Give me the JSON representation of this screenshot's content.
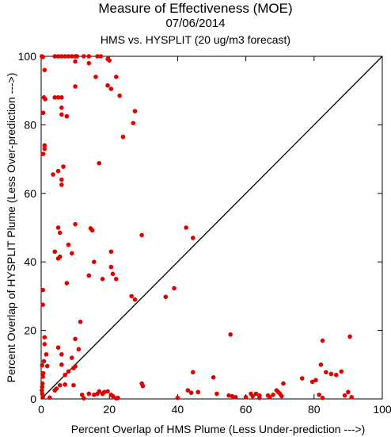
{
  "title": "Measure of Effectiveness (MOE)",
  "subtitle_date": "07/06/2014",
  "subtitle_comparison": "HMS vs. HYSPLIT  (20 ug/m3 forecast)",
  "colors": {
    "points": "#e00000",
    "axes": "#000000",
    "reference_line": "#000000"
  },
  "chart_data": {
    "type": "scatter",
    "title": "Measure of Effectiveness (MOE)",
    "xlabel": "Percent Overlap of HMS Plume (Less Under-prediction --->)",
    "ylabel": "Percent Overlap of HYSPLIT Plume (Less Over-prediction --->)",
    "xlim": [
      0,
      100
    ],
    "ylim": [
      0,
      100
    ],
    "x_ticks": [
      "0",
      "20",
      "40",
      "60",
      "80",
      "100"
    ],
    "y_ticks": [
      "0",
      "20",
      "40",
      "60",
      "80",
      "100"
    ],
    "grid": false,
    "legend": "none",
    "reference_line": {
      "from": [
        0,
        0
      ],
      "to": [
        100,
        100
      ]
    },
    "points": [
      [
        0.2,
        100
      ],
      [
        0.5,
        99.8
      ],
      [
        1.0,
        96
      ],
      [
        0.8,
        88
      ],
      [
        1.2,
        87.5
      ],
      [
        0.6,
        83.5
      ],
      [
        1.0,
        74
      ],
      [
        1.0,
        73
      ],
      [
        0.6,
        71.5
      ],
      [
        4,
        100
      ],
      [
        5,
        100
      ],
      [
        6,
        100
      ],
      [
        7,
        100
      ],
      [
        8,
        100
      ],
      [
        9,
        100
      ],
      [
        10,
        100
      ],
      [
        10.5,
        100
      ],
      [
        12.5,
        100
      ],
      [
        14,
        100
      ],
      [
        16.5,
        100
      ],
      [
        17.5,
        100
      ],
      [
        10,
        98.5
      ],
      [
        14,
        98
      ],
      [
        19.5,
        99.2
      ],
      [
        20,
        98.8
      ],
      [
        16,
        94
      ],
      [
        22,
        94
      ],
      [
        19.5,
        91.5
      ],
      [
        10,
        91.2
      ],
      [
        20.5,
        90.5
      ],
      [
        23,
        88.5
      ],
      [
        4,
        88
      ],
      [
        5,
        88
      ],
      [
        6,
        88
      ],
      [
        6,
        85
      ],
      [
        6,
        83
      ],
      [
        7.5,
        82.5
      ],
      [
        27.5,
        84
      ],
      [
        27,
        80.5
      ],
      [
        24,
        76.5
      ],
      [
        17,
        68.8
      ],
      [
        6.5,
        67.8
      ],
      [
        5,
        66.5
      ],
      [
        3.5,
        65.5
      ],
      [
        6,
        64
      ],
      [
        6,
        62.5
      ],
      [
        10,
        51
      ],
      [
        5,
        50
      ],
      [
        14.5,
        49.8
      ],
      [
        15,
        49.2
      ],
      [
        29.5,
        47.8
      ],
      [
        5.5,
        48.5
      ],
      [
        4,
        43
      ],
      [
        8,
        45
      ],
      [
        5.5,
        41.5
      ],
      [
        5,
        41
      ],
      [
        9,
        42.5
      ],
      [
        15.5,
        40
      ],
      [
        7.5,
        33.8
      ],
      [
        20.5,
        43
      ],
      [
        20.5,
        38.5
      ],
      [
        21,
        36.5
      ],
      [
        22,
        35
      ],
      [
        18,
        35
      ],
      [
        14,
        36
      ],
      [
        26.5,
        30
      ],
      [
        27.5,
        29
      ],
      [
        36.5,
        29.8
      ],
      [
        39,
        32.3
      ],
      [
        42.5,
        50
      ],
      [
        44.5,
        47
      ],
      [
        0.5,
        31.8
      ],
      [
        0.5,
        27.5
      ],
      [
        1,
        18
      ],
      [
        1,
        16
      ],
      [
        1.5,
        13
      ],
      [
        0.8,
        11
      ],
      [
        0.3,
        9.8
      ],
      [
        1.8,
        9.6
      ],
      [
        0.6,
        7.5
      ],
      [
        0.5,
        6.5
      ],
      [
        0.4,
        4.5
      ],
      [
        0.3,
        3.5
      ],
      [
        0.2,
        2.5
      ],
      [
        0.3,
        1.5
      ],
      [
        0.5,
        0.6
      ],
      [
        2.5,
        0.4
      ],
      [
        5,
        15
      ],
      [
        6,
        13
      ],
      [
        6,
        10
      ],
      [
        8,
        8
      ],
      [
        9.5,
        9
      ],
      [
        10,
        9.5
      ],
      [
        7,
        7
      ],
      [
        5.5,
        4
      ],
      [
        7,
        4.2
      ],
      [
        4.5,
        3
      ],
      [
        4,
        2.5
      ],
      [
        9.5,
        4
      ],
      [
        10,
        17.5
      ],
      [
        11,
        14.5
      ],
      [
        11.5,
        22.5
      ],
      [
        9,
        12
      ],
      [
        12,
        1.2
      ],
      [
        12.5,
        0.2
      ],
      [
        14,
        1.5
      ],
      [
        15.5,
        1.2
      ],
      [
        16.5,
        1.5
      ],
      [
        17,
        2.2
      ],
      [
        18,
        1.5
      ],
      [
        18.5,
        2.0
      ],
      [
        19.5,
        2.2
      ],
      [
        20.5,
        1.2
      ],
      [
        21,
        0.8
      ],
      [
        22,
        0.2
      ],
      [
        22.5,
        0.3
      ],
      [
        29.5,
        4.5
      ],
      [
        29.8,
        3.8
      ],
      [
        40,
        0.3
      ],
      [
        43,
        2.5
      ],
      [
        44,
        1.8
      ],
      [
        44.5,
        7.8
      ],
      [
        46,
        2.0
      ],
      [
        50.5,
        6.3
      ],
      [
        51.5,
        1.5
      ],
      [
        55.5,
        18.8
      ],
      [
        55,
        1.0
      ],
      [
        56,
        0.8
      ],
      [
        57,
        0.5
      ],
      [
        60,
        0.5
      ],
      [
        61.5,
        1.5
      ],
      [
        62,
        0.8
      ],
      [
        63,
        1.5
      ],
      [
        64,
        1.0
      ],
      [
        64,
        0.3
      ],
      [
        66.5,
        1.0
      ],
      [
        67,
        0.5
      ],
      [
        68,
        1.2
      ],
      [
        69,
        2.5
      ],
      [
        69.5,
        2.0
      ],
      [
        70,
        1.5
      ],
      [
        70.5,
        0.8
      ],
      [
        71,
        4.5
      ],
      [
        76.5,
        6.0
      ],
      [
        79.5,
        5.0
      ],
      [
        80.5,
        5.5
      ],
      [
        81.5,
        1.2
      ],
      [
        82,
        10
      ],
      [
        82.5,
        17
      ],
      [
        82.5,
        0.3
      ],
      [
        83.5,
        7.8
      ],
      [
        85,
        7.3
      ],
      [
        86.5,
        7.0
      ],
      [
        88,
        8.0
      ],
      [
        89,
        1.0
      ],
      [
        90,
        2.0
      ],
      [
        91,
        0.5
      ],
      [
        90.5,
        18.2
      ]
    ]
  }
}
